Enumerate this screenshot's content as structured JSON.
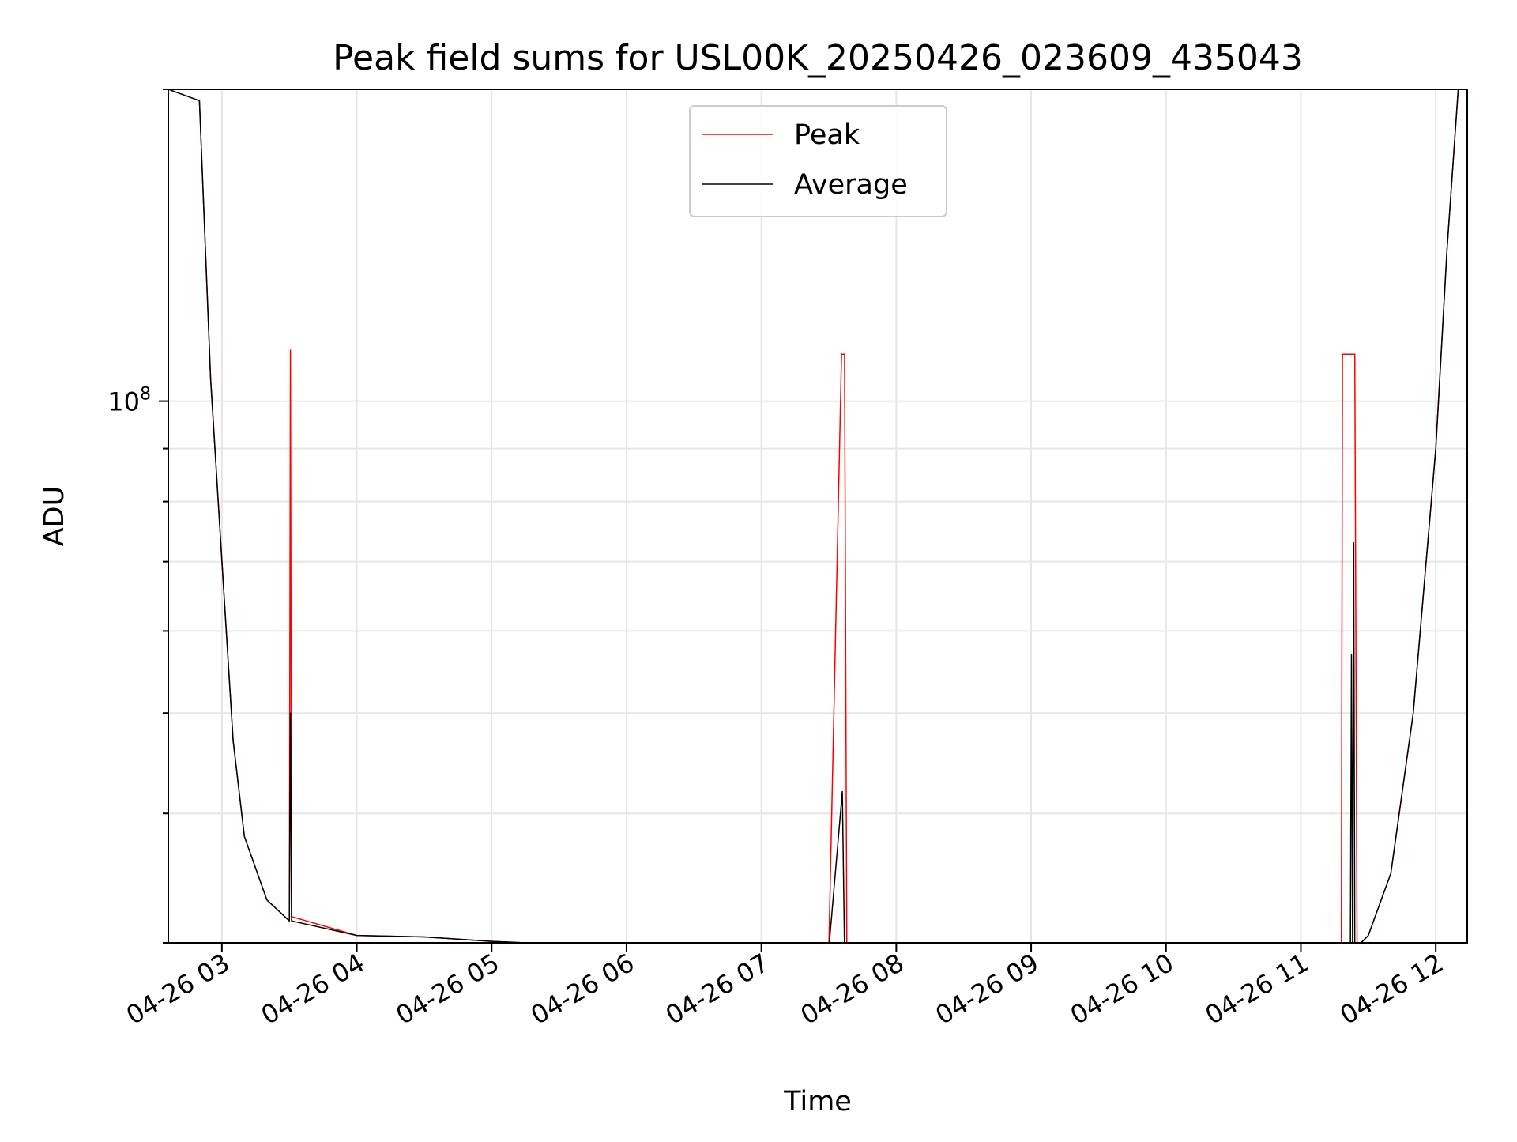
{
  "chart_data": {
    "type": "line",
    "title": "Peak field sums for USL00K_20250426_023609_435043",
    "xlabel": "Time",
    "ylabel": "ADU",
    "x_scale": "time",
    "y_scale": "log",
    "xlim": [
      "2025-04-26T02:36:09",
      "2025-04-26T12:14:00"
    ],
    "ylim": [
      30000000,
      200000000
    ],
    "x_ticks": [
      "04-26 03",
      "04-26 04",
      "04-26 05",
      "04-26 06",
      "04-26 07",
      "04-26 08",
      "04-26 09",
      "04-26 10",
      "04-26 11",
      "04-26 12"
    ],
    "y_tick_label": {
      "base": "10",
      "exponent": "8"
    },
    "grid": true,
    "legend": {
      "position": "upper center",
      "entries": [
        "Peak",
        "Average"
      ]
    },
    "colors": {
      "Peak": "#ff0000",
      "Average": "#000000"
    },
    "series": [
      {
        "name": "Peak",
        "points": [
          [
            "2025-04-26T02:36:09",
            200000000
          ],
          [
            "2025-04-26T02:50:00",
            195000000
          ],
          [
            "2025-04-26T02:55:00",
            105000000
          ],
          [
            "2025-04-26T03:00:00",
            70000000
          ],
          [
            "2025-04-26T03:05:00",
            47000000
          ],
          [
            "2025-04-26T03:10:00",
            38000000
          ],
          [
            "2025-04-26T03:20:00",
            33000000
          ],
          [
            "2025-04-26T03:30:00",
            31500000
          ],
          [
            "2025-04-26T03:30:30",
            112000000
          ],
          [
            "2025-04-26T03:31:00",
            31800000
          ],
          [
            "2025-04-26T04:00:00",
            30500000
          ],
          [
            "2025-04-26T04:30:00",
            30400000
          ],
          [
            "2025-04-26T05:00:00",
            30100000
          ],
          [
            "2025-04-26T05:30:00",
            29900000
          ],
          [
            "2025-04-26T06:00:00",
            29800000
          ],
          [
            "2025-04-26T06:30:00",
            29900000
          ],
          [
            "2025-04-26T07:00:00",
            29800000
          ],
          [
            "2025-04-26T07:30:00",
            29600000
          ],
          [
            "2025-04-26T07:35:40",
            111000000
          ],
          [
            "2025-04-26T07:37:00",
            111000000
          ],
          [
            "2025-04-26T07:38:00",
            29500000
          ],
          [
            "2025-04-26T08:00:00",
            29300000
          ],
          [
            "2025-04-26T08:30:00",
            29300000
          ],
          [
            "2025-04-26T09:00:00",
            29200000
          ],
          [
            "2025-04-26T09:30:00",
            29000000
          ],
          [
            "2025-04-26T09:45:00",
            28700000
          ],
          [
            "2025-04-26T10:00:00",
            29000000
          ],
          [
            "2025-04-26T10:30:00",
            29300000
          ],
          [
            "2025-04-26T11:00:00",
            29400000
          ],
          [
            "2025-04-26T11:18:00",
            29400000
          ],
          [
            "2025-04-26T11:18:30",
            111000000
          ],
          [
            "2025-04-26T11:21:00",
            111000000
          ],
          [
            "2025-04-26T11:22:30",
            111000000
          ],
          [
            "2025-04-26T11:24:00",
            111000000
          ],
          [
            "2025-04-26T11:25:00",
            29700000
          ],
          [
            "2025-04-26T11:30:00",
            30500000
          ],
          [
            "2025-04-26T11:40:00",
            35000000
          ],
          [
            "2025-04-26T11:50:00",
            50000000
          ],
          [
            "2025-04-26T12:00:00",
            90000000
          ],
          [
            "2025-04-26T12:05:00",
            140000000
          ],
          [
            "2025-04-26T12:10:00",
            200000000
          ]
        ]
      },
      {
        "name": "Average",
        "points": [
          [
            "2025-04-26T02:36:09",
            200000000
          ],
          [
            "2025-04-26T02:50:00",
            195000000
          ],
          [
            "2025-04-26T02:55:00",
            105000000
          ],
          [
            "2025-04-26T03:00:00",
            70000000
          ],
          [
            "2025-04-26T03:05:00",
            47000000
          ],
          [
            "2025-04-26T03:10:00",
            38000000
          ],
          [
            "2025-04-26T03:20:00",
            33000000
          ],
          [
            "2025-04-26T03:30:00",
            31500000
          ],
          [
            "2025-04-26T03:30:30",
            50000000
          ],
          [
            "2025-04-26T03:31:00",
            31500000
          ],
          [
            "2025-04-26T04:00:00",
            30500000
          ],
          [
            "2025-04-26T04:30:00",
            30400000
          ],
          [
            "2025-04-26T05:00:00",
            30100000
          ],
          [
            "2025-04-26T05:30:00",
            29900000
          ],
          [
            "2025-04-26T06:00:00",
            29800000
          ],
          [
            "2025-04-26T06:30:00",
            29900000
          ],
          [
            "2025-04-26T07:00:00",
            29800000
          ],
          [
            "2025-04-26T07:30:00",
            29600000
          ],
          [
            "2025-04-26T07:36:00",
            42000000
          ],
          [
            "2025-04-26T07:37:00",
            29500000
          ],
          [
            "2025-04-26T08:00:00",
            29300000
          ],
          [
            "2025-04-26T08:30:00",
            29300000
          ],
          [
            "2025-04-26T09:00:00",
            29200000
          ],
          [
            "2025-04-26T09:30:00",
            29000000
          ],
          [
            "2025-04-26T09:45:00",
            28700000
          ],
          [
            "2025-04-26T10:00:00",
            29000000
          ],
          [
            "2025-04-26T10:30:00",
            29300000
          ],
          [
            "2025-04-26T11:00:00",
            29400000
          ],
          [
            "2025-04-26T11:22:00",
            29400000
          ],
          [
            "2025-04-26T11:22:30",
            57000000
          ],
          [
            "2025-04-26T11:23:00",
            29500000
          ],
          [
            "2025-04-26T11:23:30",
            73000000
          ],
          [
            "2025-04-26T11:24:00",
            29600000
          ],
          [
            "2025-04-26T11:30:00",
            30500000
          ],
          [
            "2025-04-26T11:40:00",
            35000000
          ],
          [
            "2025-04-26T11:50:00",
            50000000
          ],
          [
            "2025-04-26T12:00:00",
            90000000
          ],
          [
            "2025-04-26T12:05:00",
            140000000
          ],
          [
            "2025-04-26T12:10:00",
            200000000
          ]
        ]
      }
    ]
  }
}
